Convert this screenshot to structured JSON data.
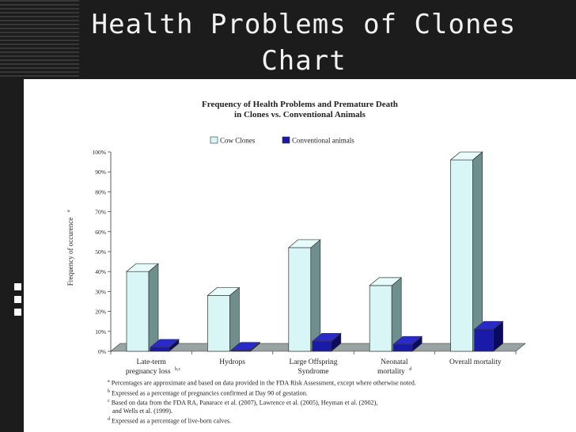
{
  "slide": {
    "title_line1": "Health Problems of Clones",
    "title_line2": "Chart"
  },
  "chart_data": {
    "type": "bar",
    "title_line1": "Frequency of Health Problems and Premature Death",
    "title_line2": "in Clones vs. Conventional Animals",
    "ylabel": "Frequency of occurence",
    "ylabel_sup": "a",
    "ylim": [
      0,
      100
    ],
    "yticks": [
      "0%",
      "10%",
      "20%",
      "30%",
      "40%",
      "50%",
      "60%",
      "70%",
      "80%",
      "90%",
      "100%"
    ],
    "categories": [
      {
        "line1": "Late-term",
        "line2": "pregnancy loss",
        "sup": "b,c"
      },
      {
        "line1": "Hydrops",
        "line2": "",
        "sup": ""
      },
      {
        "line1": "Large Offspring",
        "line2": "Syndrome",
        "sup": ""
      },
      {
        "line1": "Neonatal",
        "line2": "mortality",
        "sup": "d"
      },
      {
        "line1": "Overall mortality",
        "line2": "",
        "sup": ""
      }
    ],
    "series": [
      {
        "name": "Cow Clones",
        "color": "#d8f6f6",
        "values": [
          40,
          28,
          52,
          33,
          96
        ]
      },
      {
        "name": "Conventional animals",
        "color": "#1a1aa8",
        "values": [
          2,
          0.5,
          5,
          3.5,
          11
        ]
      }
    ],
    "legend_position": "top-center",
    "grid": false
  },
  "footnotes": [
    {
      "sup": "a",
      "text": "Percentages are approximate and based on data provided in the FDA Risk Assessment, except where otherwise noted."
    },
    {
      "sup": "b",
      "text": "Expressed as a percentage of pregnancies confirmed at Day 90 of gestation."
    },
    {
      "sup": "c",
      "text": "Based on data from the FDA RA, Panarace et al. (2007), Lawrence et al. (2005), Heyman et al. (2002),"
    },
    {
      "sup": "",
      "text": "and Wells et al. (1999)."
    },
    {
      "sup": "d",
      "text": "Expressed as a percentage of live-born calves."
    }
  ]
}
